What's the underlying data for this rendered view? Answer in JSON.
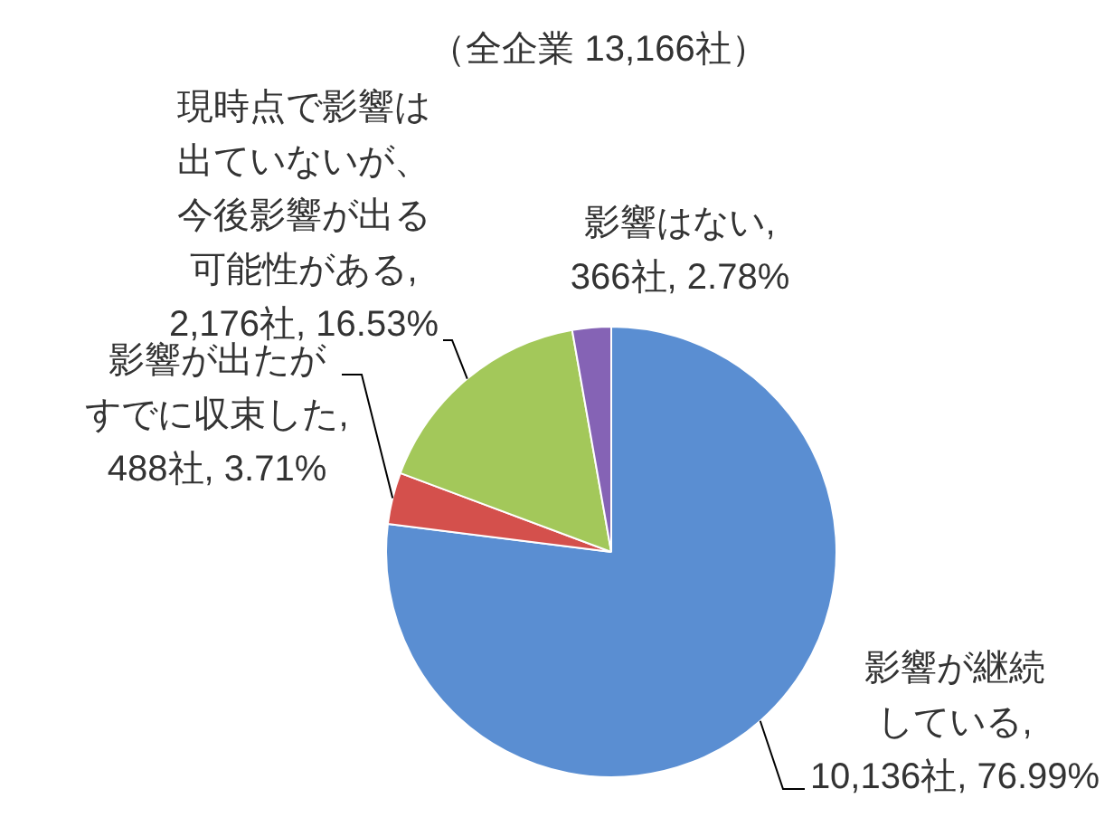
{
  "chart_data": {
    "type": "pie",
    "title": "（全企業 13,166社）",
    "categories": [
      "影響が継続している",
      "影響が出たがすでに収束した",
      "現時点で影響は出ていないが、今後影響が出る可能性がある",
      "影響はない"
    ],
    "values": [
      10136,
      488,
      2176,
      366
    ],
    "colors": [
      "#5a8ed2",
      "#d4504c",
      "#a3c85a",
      "#8563b5"
    ],
    "value_labels": [
      ", 10,136社, 76.99%",
      ", 488社, 3.71%",
      ", 2,176社, 16.53%",
      ", 366社, 2.78%"
    ]
  }
}
